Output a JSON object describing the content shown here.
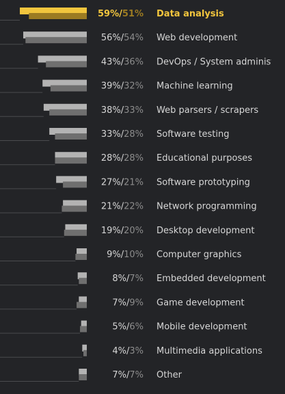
{
  "chart_data": {
    "type": "bar",
    "orientation": "horizontal",
    "direction": "right-to-left",
    "categories": [
      "Data analysis",
      "Web development",
      "DevOps / System administration",
      "Machine learning",
      "Web parsers / scrapers",
      "Software testing",
      "Educational purposes",
      "Software prototyping",
      "Network programming",
      "Desktop development",
      "Computer graphics",
      "Embedded development",
      "Game development",
      "Mobile development",
      "Multimedia applications",
      "Other"
    ],
    "series": [
      {
        "values": [
          59,
          56,
          43,
          39,
          38,
          33,
          28,
          27,
          21,
          19,
          9,
          8,
          7,
          5,
          4,
          7
        ],
        "color": "#b3b3b3",
        "highlight_color": "#f2c53d"
      },
      {
        "values": [
          51,
          54,
          36,
          32,
          33,
          28,
          28,
          21,
          22,
          20,
          10,
          7,
          9,
          6,
          3,
          7
        ],
        "color": "#6f6f6f",
        "highlight_color": "#9c7b22"
      }
    ],
    "highlight_index": 0,
    "label_separator": "/",
    "value_suffix": "%",
    "xlim": [
      0,
      60
    ],
    "grid": false,
    "legend": "none"
  },
  "colors": {
    "background": "#232427",
    "text": "#d6d6d6",
    "text_secondary": "#8c8c8c",
    "highlight_text": "#f2c53d",
    "baseline": "#4a4b4e"
  }
}
